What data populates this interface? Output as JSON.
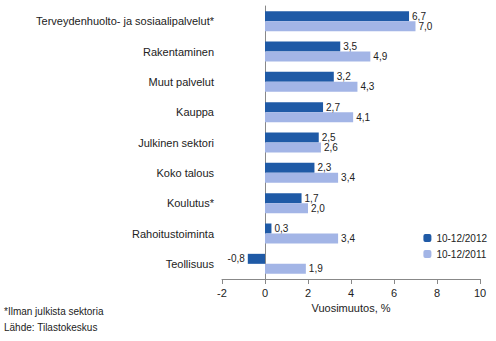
{
  "chart_data": {
    "type": "bar",
    "orientation": "horizontal",
    "categories": [
      "Terveydenhuolto- ja sosiaalipalvelut*",
      "Rakentaminen",
      "Muut palvelut",
      "Kauppa",
      "Julkinen sektori",
      "Koko talous",
      "Koulutus*",
      "Rahoitustoiminta",
      "Teollisuus"
    ],
    "series": [
      {
        "name": "10-12/2012",
        "color": "#1f5aa6",
        "values": [
          6.7,
          3.5,
          3.2,
          2.7,
          2.5,
          2.3,
          1.7,
          0.3,
          -0.8
        ],
        "value_labels": [
          "6,7",
          "3,5",
          "3,2",
          "2,7",
          "2,5",
          "2,3",
          "1,7",
          "0,3",
          "-0,8"
        ]
      },
      {
        "name": "10-12/2011",
        "color": "#a3b5e6",
        "values": [
          7.0,
          4.9,
          4.3,
          4.1,
          2.6,
          3.4,
          2.0,
          3.4,
          1.9
        ],
        "value_labels": [
          "7,0",
          "4,9",
          "4,3",
          "4,1",
          "2,6",
          "3,4",
          "2,0",
          "3,4",
          "1,9"
        ]
      }
    ],
    "x_label": "Vuosimuutos, %",
    "xlim": [
      -2,
      10
    ],
    "xticks": [
      -2,
      0,
      2,
      4,
      6,
      8,
      10
    ],
    "grid": false,
    "legend": "lower right",
    "data_labels": true,
    "annotations": [
      "*Ilman julkista sektoria",
      "Lähde: Tilastokeskus"
    ]
  }
}
